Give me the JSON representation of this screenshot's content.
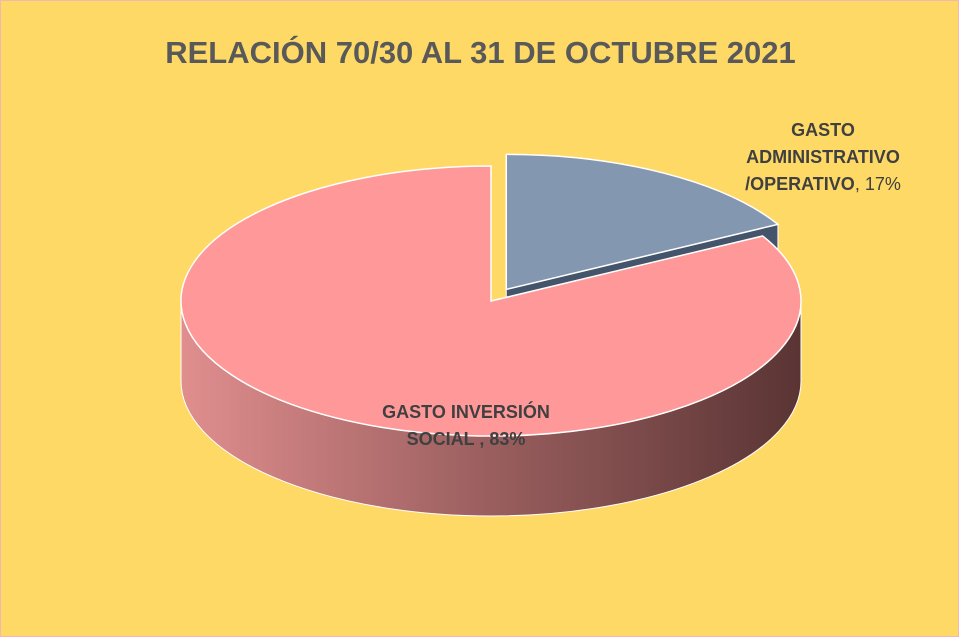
{
  "chart_data": {
    "type": "pie",
    "title": "RELACIÓN 70/30 AL 31 DE OCTUBRE 2021",
    "categories": [
      "GASTO ADMINISTRATIVO /OPERATIVO",
      "GASTO INVERSIÓN SOCIAL"
    ],
    "values": [
      17,
      83
    ],
    "value_labels": [
      "17%",
      "83%"
    ],
    "colors": [
      "#8497b0",
      "#ff9999"
    ]
  }
}
